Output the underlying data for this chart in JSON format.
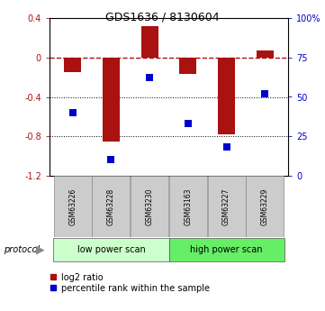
{
  "title": "GDS1636 / 8130604",
  "samples": [
    "GSM63226",
    "GSM63228",
    "GSM63230",
    "GSM63163",
    "GSM63227",
    "GSM63229"
  ],
  "log2_ratio": [
    -0.15,
    -0.85,
    0.32,
    -0.17,
    -0.78,
    0.07
  ],
  "percentile_rank": [
    40,
    10,
    62,
    33,
    18,
    52
  ],
  "bar_color": "#aa1111",
  "dot_color": "#0000cc",
  "ylim_left": [
    -1.2,
    0.4
  ],
  "ylim_right": [
    0,
    100
  ],
  "yticks_left": [
    -1.2,
    -0.8,
    -0.4,
    0.0,
    0.4
  ],
  "yticks_left_labels": [
    "-1.2",
    "-0.8",
    "-0.4",
    "0",
    "0.4"
  ],
  "yticks_right": [
    0,
    25,
    50,
    75,
    100
  ],
  "yticks_right_labels": [
    "0",
    "25",
    "50",
    "75",
    "100%"
  ],
  "hline_y": 0.0,
  "dotted_lines": [
    -0.4,
    -0.8
  ],
  "group0_label": "low power scan",
  "group0_color": "#ccffcc",
  "group1_label": "high power scan",
  "group1_color": "#66ee66",
  "protocol_label": "protocol",
  "legend_red_label": "log2 ratio",
  "legend_blue_label": "percentile rank within the sample",
  "bar_width": 0.45,
  "dot_size": 30,
  "bg_color": "#ffffff"
}
